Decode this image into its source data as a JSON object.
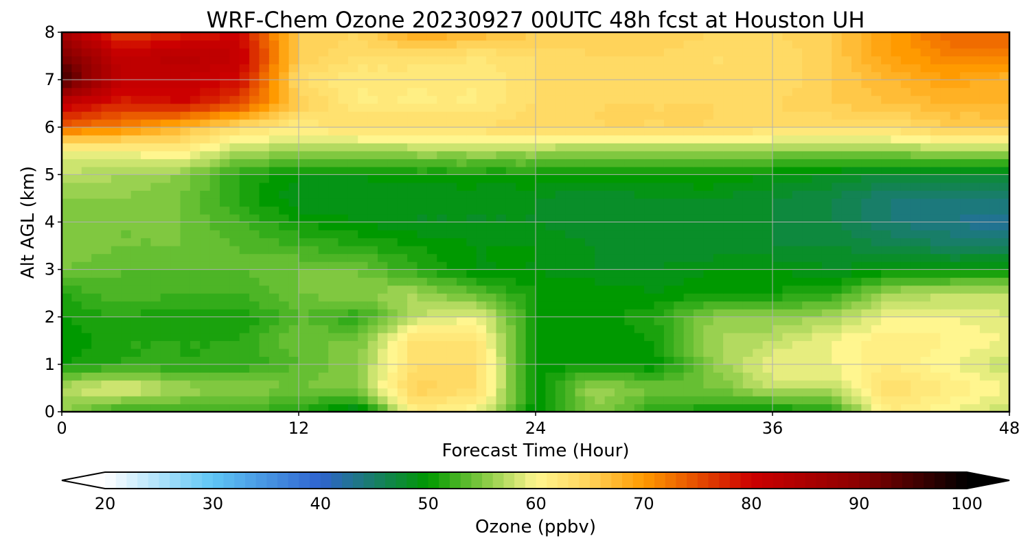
{
  "chart_data": {
    "type": "heatmap",
    "title": "WRF-Chem Ozone  20230927 00UTC 48h fcst at Houston UH",
    "xlabel": "Forecast Time (Hour)",
    "ylabel": "Alt AGL (km)",
    "xlim": [
      0,
      48
    ],
    "ylim": [
      0,
      8
    ],
    "xticks": [
      0,
      12,
      24,
      36,
      48
    ],
    "yticks": [
      0,
      1,
      2,
      3,
      4,
      5,
      6,
      7,
      8
    ],
    "grid": true,
    "x": [
      0,
      3,
      6,
      9,
      12,
      15,
      18,
      21,
      24,
      27,
      30,
      33,
      36,
      39,
      42,
      45,
      48
    ],
    "y": [
      0,
      0.5,
      1,
      1.5,
      2,
      2.5,
      3,
      3.5,
      4,
      4.5,
      5,
      5.5,
      6,
      6.5,
      7,
      7.5,
      8
    ],
    "z": [
      [
        56,
        52,
        53,
        53,
        52,
        48,
        62,
        60,
        50,
        56,
        52,
        51,
        50,
        52,
        62,
        60,
        58
      ],
      [
        58,
        60,
        57,
        56,
        55,
        56,
        66,
        64,
        50,
        57,
        55,
        55,
        58,
        58,
        64,
        62,
        60
      ],
      [
        51,
        52,
        52,
        52,
        54,
        56,
        64,
        64,
        50,
        51,
        50,
        56,
        60,
        60,
        62,
        60,
        58
      ],
      [
        50,
        52,
        52,
        52,
        55,
        55,
        64,
        63,
        50,
        50,
        51,
        57,
        58,
        60,
        62,
        61,
        60
      ],
      [
        51,
        52,
        51,
        51,
        54,
        52,
        58,
        60,
        51,
        50,
        52,
        56,
        56,
        57,
        60,
        60,
        59
      ],
      [
        52,
        54,
        53,
        53,
        55,
        56,
        57,
        54,
        51,
        51,
        50,
        51,
        51,
        52,
        57,
        58,
        58
      ],
      [
        55,
        54,
        54,
        54,
        55,
        55,
        52,
        50,
        50,
        49,
        49,
        50,
        50,
        49,
        50,
        50,
        50
      ],
      [
        56,
        55,
        55,
        54,
        53,
        52,
        51,
        50,
        50,
        49,
        48,
        48,
        48,
        48,
        47,
        46,
        46
      ],
      [
        56,
        55,
        55,
        53,
        51,
        50,
        49,
        49,
        49,
        48,
        48,
        48,
        48,
        47,
        45,
        44,
        43
      ],
      [
        56,
        56,
        55,
        52,
        49,
        49,
        49,
        49,
        49,
        48,
        49,
        49,
        48,
        47,
        45,
        45,
        45
      ],
      [
        58,
        57,
        56,
        52,
        50,
        50,
        51,
        51,
        51,
        51,
        51,
        51,
        50,
        49,
        48,
        48,
        48
      ],
      [
        60,
        60,
        62,
        57,
        57,
        56,
        57,
        57,
        57,
        56,
        56,
        56,
        56,
        56,
        56,
        57,
        57
      ],
      [
        74,
        72,
        68,
        64,
        62,
        64,
        64,
        64,
        65,
        65,
        65,
        65,
        64,
        64,
        64,
        66,
        66
      ],
      [
        82,
        78,
        80,
        76,
        66,
        62,
        62,
        62,
        64,
        65,
        65,
        65,
        65,
        66,
        67,
        68,
        68
      ],
      [
        96,
        82,
        82,
        80,
        64,
        62,
        62,
        62,
        64,
        65,
        64,
        64,
        64,
        66,
        68,
        70,
        68
      ],
      [
        92,
        82,
        84,
        82,
        66,
        64,
        64,
        63,
        64,
        65,
        65,
        64,
        64,
        66,
        70,
        72,
        72
      ],
      [
        86,
        76,
        78,
        80,
        66,
        65,
        70,
        68,
        66,
        66,
        66,
        65,
        65,
        66,
        70,
        74,
        74
      ]
    ],
    "colorbar": {
      "label": "Ozone  (ppbv)",
      "range": [
        20,
        100
      ],
      "ticks": [
        20,
        30,
        40,
        50,
        60,
        70,
        80,
        90,
        100
      ],
      "extend": "both",
      "stops": [
        {
          "v": 20,
          "c": "#ffffff"
        },
        {
          "v": 30,
          "c": "#5fc6f5"
        },
        {
          "v": 40,
          "c": "#2f63cf"
        },
        {
          "v": 50,
          "c": "#009900"
        },
        {
          "v": 55,
          "c": "#80c840"
        },
        {
          "v": 60,
          "c": "#fff68f"
        },
        {
          "v": 65,
          "c": "#ffd35a"
        },
        {
          "v": 70,
          "c": "#ff9a00"
        },
        {
          "v": 80,
          "c": "#cc0000"
        },
        {
          "v": 90,
          "c": "#8b0000"
        },
        {
          "v": 100,
          "c": "#000000"
        }
      ]
    }
  }
}
